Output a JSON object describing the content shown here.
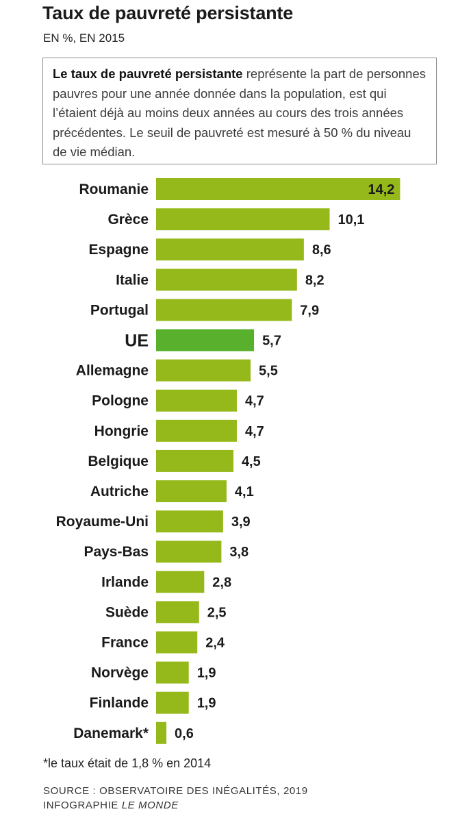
{
  "header": {
    "title": "Taux de pauvreté persistante",
    "subtitle": "EN %, EN 2015"
  },
  "definition": {
    "term": "Le taux de pauvreté persistante",
    "text": " représente la part de personnes pauvres pour une année donnée dans la population, est qui l’étaient déjà au moins deux années au cours des trois années précédentes. Le seuil de pauvreté est mesuré à 50 % du niveau de vie médian."
  },
  "chart_data": {
    "type": "bar",
    "orientation": "horizontal",
    "categories": [
      "Roumanie",
      "Grèce",
      "Espagne",
      "Italie",
      "Portugal",
      "UE",
      "Allemagne",
      "Pologne",
      "Hongrie",
      "Belgique",
      "Autriche",
      "Royaume-Uni",
      "Pays-Bas",
      "Irlande",
      "Suède",
      "France",
      "Norvège",
      "Finlande",
      "Danemark*"
    ],
    "values": [
      14.2,
      10.1,
      8.6,
      8.2,
      7.9,
      5.7,
      5.5,
      4.7,
      4.7,
      4.5,
      4.1,
      3.9,
      3.8,
      2.8,
      2.5,
      2.4,
      1.9,
      1.9,
      0.6
    ],
    "value_labels": [
      "14,2",
      "10,1",
      "8,6",
      "8,2",
      "7,9",
      "5,7",
      "5,5",
      "4,7",
      "4,7",
      "4,5",
      "4,1",
      "3,9",
      "3,8",
      "2,8",
      "2,5",
      "2,4",
      "1,9",
      "1,9",
      "0,6"
    ],
    "highlight": "UE",
    "colors": {
      "bar": "#95b81a",
      "highlight": "#58b02c"
    },
    "unit": "%"
  },
  "footnote": "*le taux était de 1,8 % en 2014",
  "source": {
    "line1": "SOURCE : OBSERVATOIRE DES INÉGALITÉS, 2019",
    "line2_prefix": "INFOGRAPHIE ",
    "line2_italic": "LE MONDE"
  }
}
